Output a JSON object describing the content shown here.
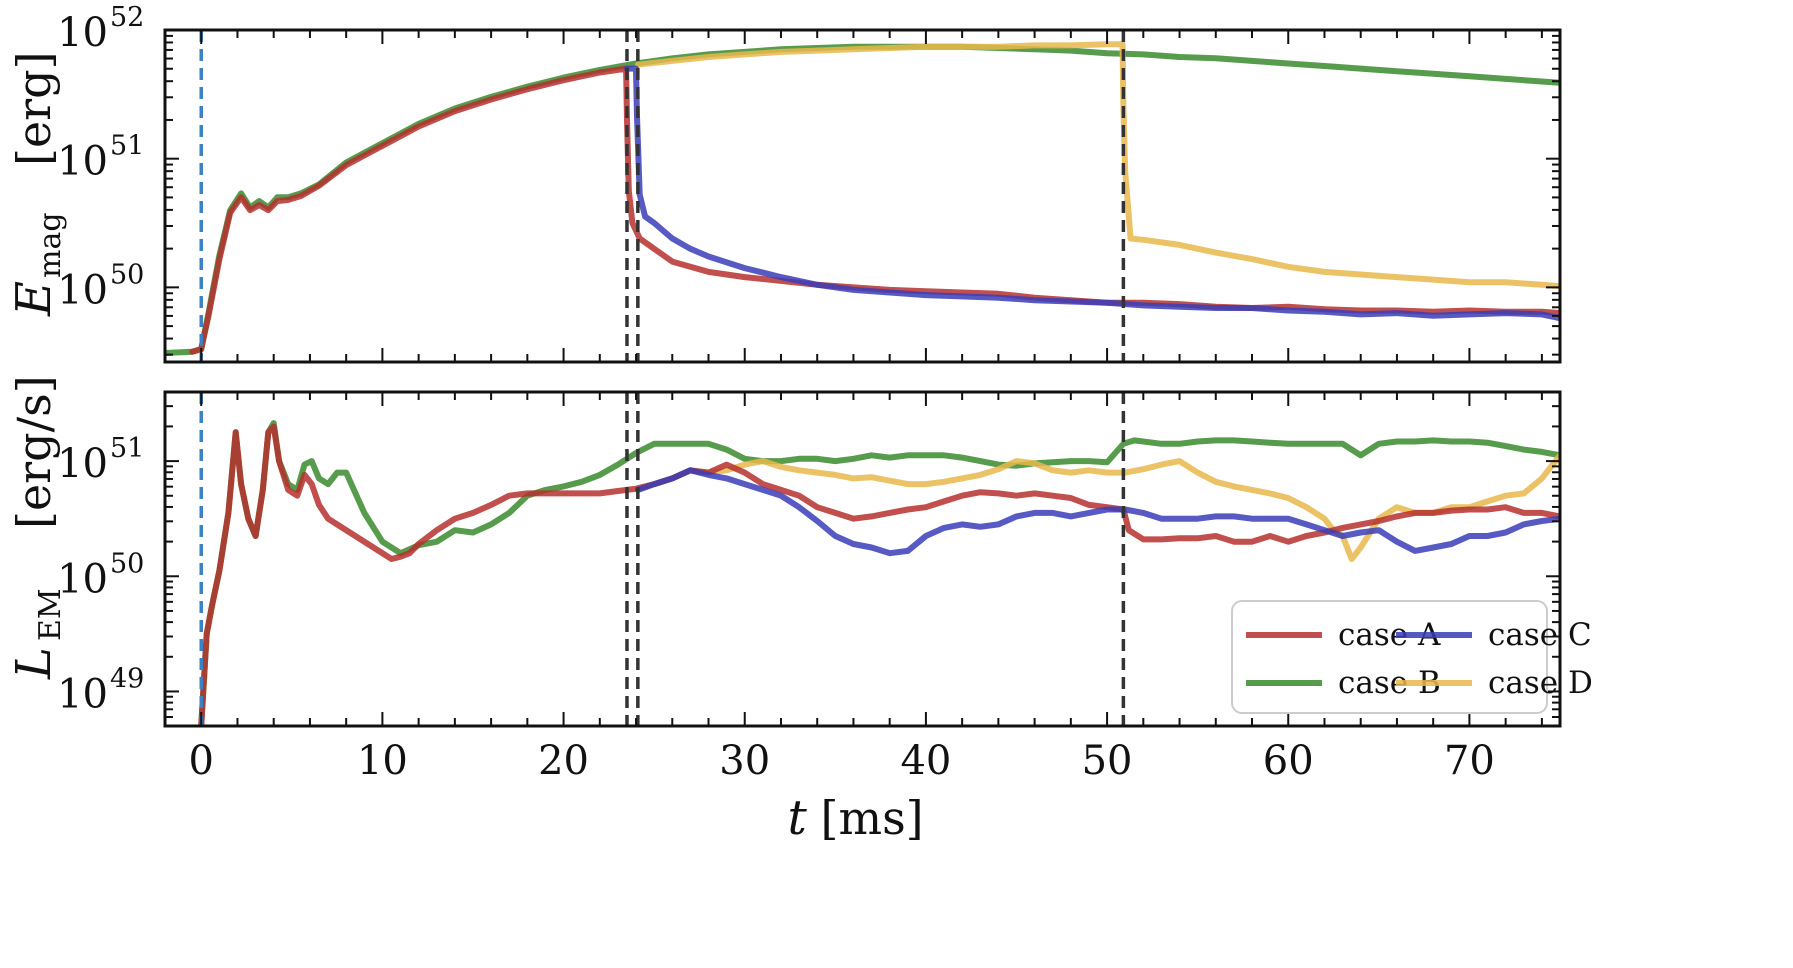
{
  "chart_data": [
    {
      "type": "line",
      "panel": "top",
      "ylabel_main": "E",
      "ylabel_sub": "mag",
      "ylabel_unit": "[erg]",
      "yscale": "log",
      "ylim_exp": [
        49.42,
        52.0
      ],
      "xlim": [
        -2,
        75
      ],
      "ytick_base": "10",
      "yticks": [
        {
          "exp_label": "50",
          "exp": 50
        },
        {
          "exp_label": "51",
          "exp": 51
        },
        {
          "exp_label": "52",
          "exp": 52
        }
      ],
      "vlines": [
        {
          "x": 0,
          "style": "dashed",
          "color": "#3b82c4"
        },
        {
          "x": 23.5,
          "style": "dashed",
          "color": "#333333"
        },
        {
          "x": 24.1,
          "style": "dashed",
          "color": "#333333"
        },
        {
          "x": 50.9,
          "style": "dashed",
          "color": "#333333"
        }
      ],
      "series": [
        {
          "name": "case B",
          "color": "#3a8a2e",
          "x": [
            -2,
            -0.5,
            0,
            0.4,
            1,
            1.6,
            2.2,
            2.7,
            3.2,
            3.7,
            4.2,
            4.8,
            5.5,
            6.5,
            8,
            10,
            12,
            14,
            16,
            18,
            20,
            22,
            24,
            26,
            28,
            30,
            32,
            34,
            36,
            38,
            40,
            42,
            44,
            46,
            48,
            50,
            52,
            54,
            56,
            58,
            60,
            62,
            64,
            66,
            68,
            70,
            72,
            74,
            75
          ],
          "y": [
            49.49,
            49.5,
            49.52,
            49.8,
            50.25,
            50.6,
            50.73,
            50.62,
            50.67,
            50.62,
            50.7,
            50.7,
            50.73,
            50.8,
            50.97,
            51.12,
            51.27,
            51.39,
            51.48,
            51.56,
            51.63,
            51.69,
            51.74,
            51.78,
            51.81,
            51.83,
            51.85,
            51.86,
            51.87,
            51.87,
            51.87,
            51.87,
            51.86,
            51.85,
            51.84,
            51.82,
            51.81,
            51.79,
            51.78,
            51.76,
            51.74,
            51.72,
            51.7,
            51.68,
            51.66,
            51.64,
            51.62,
            51.6,
            51.59
          ]
        },
        {
          "name": "case D",
          "color": "#e8b84b",
          "x": [
            24.1,
            26,
            28,
            30,
            32,
            34,
            36,
            38,
            40,
            42,
            44,
            46,
            48,
            50,
            50.85,
            50.9,
            51,
            51.3,
            52,
            54,
            56,
            58,
            60,
            62,
            64,
            66,
            68,
            70,
            72,
            74,
            75
          ],
          "y": [
            51.73,
            51.76,
            51.79,
            51.81,
            51.83,
            51.84,
            51.85,
            51.86,
            51.87,
            51.87,
            51.87,
            51.88,
            51.88,
            51.89,
            51.89,
            51.4,
            50.9,
            50.38,
            50.37,
            50.33,
            50.27,
            50.22,
            50.16,
            50.12,
            50.1,
            50.08,
            50.06,
            50.04,
            50.04,
            50.02,
            50.01
          ]
        },
        {
          "name": "case A",
          "color": "#b5302e",
          "x": [
            -0.5,
            0,
            0.4,
            1,
            1.6,
            2.2,
            2.7,
            3.2,
            3.7,
            4.2,
            4.8,
            5.5,
            6.5,
            8,
            10,
            12,
            14,
            16,
            18,
            20,
            22,
            23.45,
            23.5,
            23.6,
            23.8,
            24.2,
            25,
            26,
            28,
            30,
            32,
            34,
            36,
            38,
            40,
            42,
            44,
            46,
            48,
            50,
            52,
            54,
            56,
            58,
            60,
            62,
            64,
            66,
            68,
            70,
            72,
            74,
            75
          ],
          "y": [
            49.5,
            49.52,
            49.78,
            50.22,
            50.58,
            50.7,
            50.6,
            50.64,
            50.6,
            50.67,
            50.68,
            50.71,
            50.79,
            50.95,
            51.1,
            51.25,
            51.37,
            51.46,
            51.54,
            51.61,
            51.67,
            51.7,
            51.3,
            50.75,
            50.5,
            50.38,
            50.3,
            50.2,
            50.12,
            50.08,
            50.05,
            50.02,
            50.0,
            49.98,
            49.97,
            49.96,
            49.95,
            49.92,
            49.9,
            49.88,
            49.88,
            49.87,
            49.85,
            49.84,
            49.85,
            49.83,
            49.82,
            49.82,
            49.81,
            49.82,
            49.81,
            49.81,
            49.8
          ]
        },
        {
          "name": "case C",
          "color": "#3a3db8",
          "x": [
            23.5,
            24.0,
            24.05,
            24.2,
            24.5,
            25,
            26,
            27,
            28,
            30,
            32,
            34,
            36,
            38,
            40,
            42,
            44,
            46,
            48,
            50,
            52,
            54,
            56,
            58,
            60,
            62,
            64,
            66,
            68,
            70,
            72,
            74,
            75
          ],
          "y": [
            51.7,
            51.7,
            51.35,
            50.72,
            50.55,
            50.5,
            50.38,
            50.3,
            50.24,
            50.15,
            50.08,
            50.02,
            49.98,
            49.96,
            49.94,
            49.93,
            49.92,
            49.9,
            49.89,
            49.88,
            49.86,
            49.85,
            49.84,
            49.84,
            49.82,
            49.81,
            49.79,
            49.8,
            49.78,
            49.79,
            49.8,
            49.79,
            49.76
          ]
        }
      ]
    },
    {
      "type": "line",
      "panel": "bottom",
      "ylabel_main": "L",
      "ylabel_sub": "EM",
      "ylabel_unit": "[erg/s]",
      "yscale": "log",
      "ylim_exp": [
        48.7,
        51.6
      ],
      "xlim": [
        -2,
        75
      ],
      "ytick_base": "10",
      "yticks": [
        {
          "exp_label": "49",
          "exp": 49
        },
        {
          "exp_label": "50",
          "exp": 50
        },
        {
          "exp_label": "51",
          "exp": 51
        }
      ],
      "xticks": [
        "0",
        "10",
        "20",
        "30",
        "40",
        "50",
        "60",
        "70"
      ],
      "xtick_values": [
        0,
        10,
        20,
        30,
        40,
        50,
        60,
        70
      ],
      "xlabel_var": "t",
      "xlabel_unit": "[ms]",
      "vlines": [
        {
          "x": 0,
          "style": "dashed",
          "color": "#3b82c4"
        },
        {
          "x": 23.5,
          "style": "dashed",
          "color": "#333333"
        },
        {
          "x": 24.1,
          "style": "dashed",
          "color": "#333333"
        },
        {
          "x": 50.9,
          "style": "dashed",
          "color": "#333333"
        }
      ],
      "series": [
        {
          "name": "case B",
          "color": "#3a8a2e",
          "x": [
            0,
            0.3,
            0.6,
            1.0,
            1.5,
            1.9,
            2.2,
            2.6,
            3.0,
            3.4,
            3.7,
            4.0,
            4.3,
            4.8,
            5.3,
            5.7,
            6.1,
            6.5,
            7,
            7.5,
            8,
            9,
            10,
            11,
            12,
            13,
            14,
            15,
            16,
            17,
            18,
            19,
            20,
            21,
            22,
            23,
            24,
            25,
            26,
            27,
            28,
            29,
            30,
            31,
            32,
            33,
            34,
            35,
            36,
            37,
            38,
            39,
            40,
            41,
            42,
            43,
            44,
            45,
            46,
            47,
            48,
            49,
            50,
            50.9,
            51.5,
            52,
            53,
            54,
            55,
            56,
            57,
            58,
            59,
            60,
            61,
            62,
            63,
            64,
            65,
            66,
            67,
            68,
            69,
            70,
            71,
            72,
            73,
            74,
            75
          ],
          "y": [
            48.7,
            49.5,
            49.75,
            50.05,
            50.55,
            51.25,
            50.8,
            50.5,
            50.35,
            50.75,
            51.25,
            51.33,
            51.0,
            50.8,
            50.75,
            50.97,
            51.0,
            50.85,
            50.8,
            50.9,
            50.9,
            50.55,
            50.3,
            50.2,
            50.27,
            50.3,
            50.4,
            50.38,
            50.45,
            50.55,
            50.7,
            50.75,
            50.78,
            50.82,
            50.88,
            50.97,
            51.07,
            51.15,
            51.15,
            51.15,
            51.15,
            51.1,
            51.02,
            51.0,
            51.0,
            51.02,
            51.02,
            51.0,
            51.02,
            51.05,
            51.03,
            51.05,
            51.05,
            51.05,
            51.03,
            51.0,
            50.97,
            50.96,
            50.98,
            50.99,
            51.0,
            51.0,
            50.99,
            51.15,
            51.18,
            51.17,
            51.15,
            51.15,
            51.17,
            51.18,
            51.18,
            51.17,
            51.16,
            51.15,
            51.15,
            51.15,
            51.15,
            51.05,
            51.15,
            51.17,
            51.17,
            51.18,
            51.17,
            51.17,
            51.16,
            51.13,
            51.1,
            51.08,
            51.05
          ]
        },
        {
          "name": "case D",
          "color": "#e8b84b",
          "x": [
            24.1,
            25,
            26,
            27,
            28,
            29,
            30,
            31,
            32,
            33,
            34,
            35,
            36,
            37,
            38,
            39,
            40,
            41,
            42,
            43,
            44,
            45,
            46,
            47,
            48,
            49,
            50,
            51,
            52,
            53,
            54,
            55,
            56,
            57,
            58,
            59,
            60,
            61,
            62,
            62.5,
            63,
            63.5,
            64,
            65,
            66,
            67,
            68,
            69,
            70,
            71,
            72,
            73,
            74,
            74.5,
            75
          ],
          "y": [
            50.75,
            50.8,
            50.85,
            50.92,
            50.9,
            50.92,
            50.97,
            51.0,
            50.95,
            50.92,
            50.9,
            50.88,
            50.85,
            50.86,
            50.83,
            50.8,
            50.8,
            50.82,
            50.85,
            50.88,
            50.93,
            51.0,
            50.98,
            50.92,
            50.9,
            50.92,
            50.9,
            50.9,
            50.93,
            50.97,
            51.0,
            50.9,
            50.82,
            50.78,
            50.75,
            50.72,
            50.68,
            50.6,
            50.5,
            50.4,
            50.35,
            50.15,
            50.25,
            50.5,
            50.6,
            50.55,
            50.55,
            50.6,
            50.6,
            50.65,
            50.7,
            50.72,
            50.85,
            50.95,
            51.05
          ]
        },
        {
          "name": "case A",
          "color": "#b5302e",
          "x": [
            0,
            0.3,
            0.6,
            1.0,
            1.5,
            1.9,
            2.2,
            2.6,
            3.0,
            3.4,
            3.7,
            4.0,
            4.3,
            4.8,
            5.3,
            5.7,
            6.1,
            6.5,
            7,
            8,
            9,
            10,
            10.5,
            11,
            11.5,
            12,
            13,
            14,
            15,
            16,
            17,
            18,
            19,
            20,
            21,
            22,
            23,
            24,
            25,
            26,
            27,
            28,
            29,
            30,
            31,
            32,
            33,
            34,
            35,
            36,
            37,
            38,
            39,
            40,
            41,
            42,
            43,
            44,
            45,
            46,
            47,
            48,
            49,
            50,
            50.9,
            51.2,
            52,
            53,
            54,
            55,
            56,
            57,
            58,
            59,
            60,
            61,
            62,
            63,
            64,
            65,
            66,
            67,
            68,
            69,
            70,
            71,
            72,
            73,
            74,
            75
          ],
          "y": [
            48.7,
            49.5,
            49.75,
            50.05,
            50.55,
            51.25,
            50.8,
            50.5,
            50.35,
            50.75,
            51.25,
            51.3,
            51.0,
            50.75,
            50.7,
            50.88,
            50.8,
            50.62,
            50.5,
            50.4,
            50.3,
            50.2,
            50.15,
            50.17,
            50.2,
            50.28,
            50.4,
            50.5,
            50.55,
            50.62,
            50.7,
            50.72,
            50.72,
            50.72,
            50.72,
            50.72,
            50.74,
            50.76,
            50.8,
            50.85,
            50.92,
            50.9,
            50.97,
            50.9,
            50.8,
            50.75,
            50.7,
            50.6,
            50.55,
            50.5,
            50.52,
            50.55,
            50.58,
            50.6,
            50.65,
            50.7,
            50.73,
            50.72,
            50.7,
            50.72,
            50.7,
            50.68,
            50.62,
            50.6,
            50.58,
            50.4,
            50.32,
            50.32,
            50.33,
            50.33,
            50.35,
            50.3,
            50.3,
            50.35,
            50.3,
            50.35,
            50.38,
            50.42,
            50.45,
            50.48,
            50.52,
            50.55,
            50.55,
            50.57,
            50.58,
            50.58,
            50.6,
            50.55,
            50.55,
            50.52
          ]
        },
        {
          "name": "case C",
          "color": "#3a3db8",
          "x": [
            24.1,
            25,
            26,
            27,
            28,
            29,
            30,
            31,
            32,
            33,
            34,
            35,
            36,
            37,
            38,
            39,
            40,
            41,
            42,
            43,
            44,
            45,
            46,
            47,
            48,
            49,
            50,
            51,
            52,
            53,
            54,
            55,
            56,
            57,
            58,
            59,
            60,
            61,
            62,
            63,
            64,
            65,
            66,
            67,
            68,
            69,
            70,
            71,
            72,
            73,
            74,
            75
          ],
          "y": [
            50.75,
            50.8,
            50.85,
            50.92,
            50.88,
            50.85,
            50.8,
            50.75,
            50.7,
            50.6,
            50.48,
            50.35,
            50.28,
            50.25,
            50.2,
            50.22,
            50.35,
            50.42,
            50.45,
            50.43,
            50.45,
            50.52,
            50.55,
            50.55,
            50.52,
            50.55,
            50.58,
            50.58,
            50.55,
            50.5,
            50.5,
            50.5,
            50.52,
            50.52,
            50.5,
            50.5,
            50.5,
            50.45,
            50.4,
            50.35,
            50.38,
            50.4,
            50.3,
            50.22,
            50.25,
            50.28,
            50.35,
            50.35,
            50.38,
            50.45,
            50.48,
            50.5
          ]
        }
      ]
    }
  ],
  "legend": {
    "placement": "lower-right",
    "entries": [
      {
        "label": "case A",
        "color": "#b5302e"
      },
      {
        "label": "case C",
        "color": "#3a3db8"
      },
      {
        "label": "case B",
        "color": "#3a8a2e"
      },
      {
        "label": "case D",
        "color": "#e8b84b"
      }
    ]
  }
}
